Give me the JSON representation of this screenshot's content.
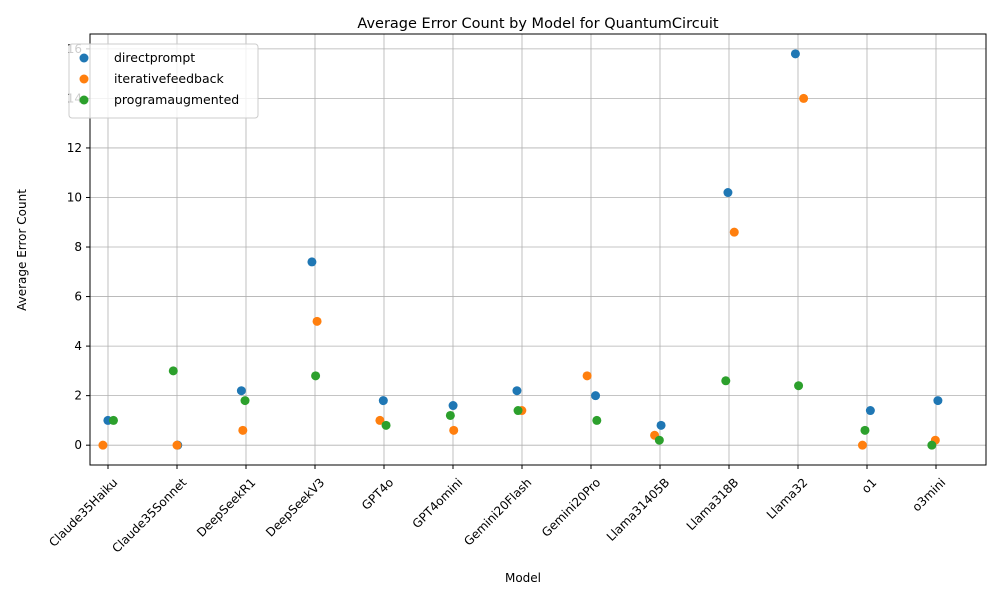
{
  "chart_data": {
    "type": "scatter",
    "title": "Average Error Count by Model for QuantumCircuit",
    "xlabel": "Model",
    "ylabel": "Average Error Count",
    "categories": [
      "Claude35Haiku",
      "Claude35Sonnet",
      "DeepSeekR1",
      "DeepSeekV3",
      "GPT4o",
      "GPT4omini",
      "Gemini20Flash",
      "Gemini20Pro",
      "Llama31405B",
      "Llama318B",
      "Llama32",
      "o1",
      "o3mini"
    ],
    "ylim": [
      -0.8,
      16.6
    ],
    "yticks": [
      0,
      2,
      4,
      6,
      8,
      10,
      12,
      14,
      16
    ],
    "grid": true,
    "legend_position": "top-left",
    "series": [
      {
        "name": "directprompt",
        "color": "#1f77b4",
        "points": [
          {
            "category": "Claude35Haiku",
            "y": 1.0
          },
          {
            "category": "Claude35Sonnet",
            "y": 0.0
          },
          {
            "category": "DeepSeekR1",
            "y": 2.2
          },
          {
            "category": "DeepSeekV3",
            "y": 7.4
          },
          {
            "category": "GPT4o",
            "y": 1.8
          },
          {
            "category": "GPT4omini",
            "y": 1.6
          },
          {
            "category": "Gemini20Flash",
            "y": 2.2
          },
          {
            "category": "Gemini20Pro",
            "y": 2.0
          },
          {
            "category": "Llama31405B",
            "y": 0.8
          },
          {
            "category": "Llama318B",
            "y": 10.2
          },
          {
            "category": "Llama32",
            "y": 15.8
          },
          {
            "category": "o1",
            "y": 1.4
          },
          {
            "category": "o3mini",
            "y": 1.8
          }
        ]
      },
      {
        "name": "iterativefeedback",
        "color": "#ff7f0e",
        "points": [
          {
            "category": "Claude35Haiku",
            "y": 0.0
          },
          {
            "category": "Claude35Sonnet",
            "y": 0.0
          },
          {
            "category": "DeepSeekR1",
            "y": 0.6
          },
          {
            "category": "DeepSeekV3",
            "y": 5.0
          },
          {
            "category": "GPT4o",
            "y": 1.0
          },
          {
            "category": "GPT4omini",
            "y": 0.6
          },
          {
            "category": "Gemini20Flash",
            "y": 1.4
          },
          {
            "category": "Gemini20Pro",
            "y": 2.8
          },
          {
            "category": "Llama31405B",
            "y": 0.4
          },
          {
            "category": "Llama318B",
            "y": 8.6
          },
          {
            "category": "Llama32",
            "y": 14.0
          },
          {
            "category": "o1",
            "y": 0.0
          },
          {
            "category": "o3mini",
            "y": 0.2
          }
        ]
      },
      {
        "name": "programaugmented",
        "color": "#2ca02c",
        "points": [
          {
            "category": "Claude35Haiku",
            "y": 1.0
          },
          {
            "category": "Claude35Sonnet",
            "y": 3.0
          },
          {
            "category": "DeepSeekR1",
            "y": 1.8
          },
          {
            "category": "DeepSeekV3",
            "y": 2.8
          },
          {
            "category": "GPT4o",
            "y": 0.8
          },
          {
            "category": "GPT4omini",
            "y": 1.2
          },
          {
            "category": "Gemini20Flash",
            "y": 1.4
          },
          {
            "category": "Gemini20Pro",
            "y": 1.0
          },
          {
            "category": "Llama31405B",
            "y": 0.2
          },
          {
            "category": "Llama318B",
            "y": 2.6
          },
          {
            "category": "Llama32",
            "y": 2.4
          },
          {
            "category": "o1",
            "y": 0.6
          },
          {
            "category": "o3mini",
            "y": 0.0
          }
        ]
      }
    ]
  }
}
